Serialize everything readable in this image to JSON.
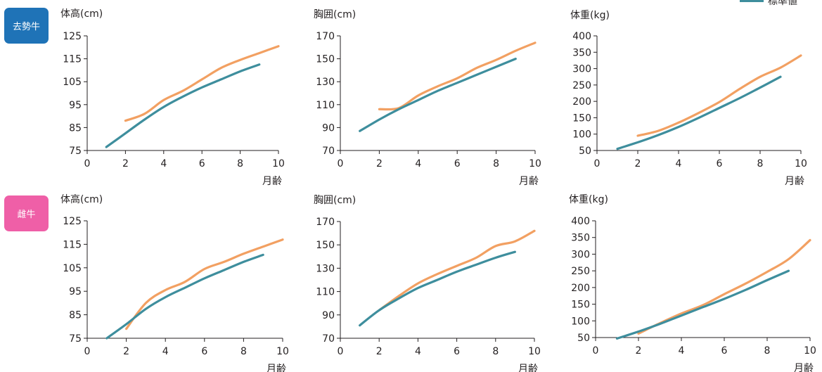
{
  "legend": {
    "label": "標準値",
    "color": "#3e8e9d"
  },
  "groups": [
    {
      "name": "去勢牛",
      "color": "#1f73b7"
    },
    {
      "name": "雌牛",
      "color": "#ef5fa7"
    }
  ],
  "colors": {
    "standard": "#3e8e9d",
    "measured": "#f2a062"
  },
  "chart_data": [
    {
      "type": "line",
      "group": "去勢牛",
      "title": "体高(cm)",
      "xlabel": "月齢",
      "xlim": [
        0,
        10
      ],
      "ylim": [
        75,
        125
      ],
      "xticks": [
        0,
        2,
        4,
        6,
        8,
        10
      ],
      "yticks": [
        75,
        85,
        95,
        105,
        115,
        125
      ],
      "series": [
        {
          "name": "標準値",
          "x": [
            1,
            2,
            3,
            4,
            5,
            6,
            7,
            8,
            9
          ],
          "y": [
            76.5,
            82.5,
            88.5,
            94,
            98.5,
            102.5,
            106,
            109.5,
            112.5
          ]
        },
        {
          "x": [
            2,
            3,
            4,
            5,
            6,
            7,
            8,
            9,
            10
          ],
          "y": [
            88,
            91,
            97,
            101,
            106,
            111,
            114.5,
            117.5,
            120.5
          ]
        }
      ]
    },
    {
      "type": "line",
      "group": "去勢牛",
      "title": "胸囲(cm)",
      "xlabel": "月齢",
      "xlim": [
        0,
        10
      ],
      "ylim": [
        70,
        170
      ],
      "xticks": [
        0,
        2,
        4,
        6,
        8,
        10
      ],
      "yticks": [
        70,
        90,
        110,
        130,
        150,
        170
      ],
      "series": [
        {
          "name": "標準値",
          "x": [
            1,
            2,
            3,
            4,
            5,
            6,
            7,
            8,
            9
          ],
          "y": [
            87,
            97,
            106,
            114,
            122,
            129,
            136,
            143,
            150
          ]
        },
        {
          "x": [
            2,
            3,
            4,
            5,
            6,
            7,
            8,
            9,
            10
          ],
          "y": [
            106,
            107,
            118,
            126,
            133,
            142,
            149,
            157,
            164
          ]
        }
      ]
    },
    {
      "type": "line",
      "group": "去勢牛",
      "title": "体重(kg)",
      "xlabel": "月齢",
      "xlim": [
        0,
        10
      ],
      "ylim": [
        50,
        400
      ],
      "xticks": [
        0,
        2,
        4,
        6,
        8,
        10
      ],
      "yticks": [
        50,
        100,
        150,
        200,
        250,
        300,
        350,
        400
      ],
      "series": [
        {
          "name": "標準値",
          "x": [
            1,
            2,
            3,
            4,
            5,
            6,
            7,
            8,
            9
          ],
          "y": [
            55,
            75,
            97,
            122,
            150,
            180,
            210,
            242,
            275
          ]
        },
        {
          "x": [
            2,
            3,
            4,
            5,
            6,
            7,
            8,
            9,
            10
          ],
          "y": [
            95,
            110,
            135,
            165,
            198,
            238,
            275,
            303,
            340
          ]
        }
      ]
    },
    {
      "type": "line",
      "group": "雌牛",
      "title": "体高(cm)",
      "xlabel": "月齢",
      "xlim": [
        0,
        10
      ],
      "ylim": [
        75,
        125
      ],
      "xticks": [
        0,
        2,
        4,
        6,
        8,
        10
      ],
      "yticks": [
        75,
        85,
        95,
        105,
        115,
        125
      ],
      "series": [
        {
          "name": "標準値",
          "x": [
            1,
            2,
            3,
            4,
            5,
            6,
            7,
            8,
            9
          ],
          "y": [
            75,
            81,
            87.5,
            92.5,
            96.5,
            100.5,
            104,
            107.5,
            110.5
          ]
        },
        {
          "x": [
            2,
            3,
            4,
            5,
            6,
            7,
            8,
            9,
            10
          ],
          "y": [
            79,
            90,
            95.5,
            99,
            104.5,
            107.5,
            111,
            114,
            117
          ]
        }
      ]
    },
    {
      "type": "line",
      "group": "雌牛",
      "title": "胸囲(cm)",
      "xlabel": "月齢",
      "xlim": [
        0,
        10
      ],
      "ylim": [
        70,
        170
      ],
      "xticks": [
        0,
        2,
        4,
        6,
        8,
        10
      ],
      "yticks": [
        70,
        90,
        110,
        130,
        150,
        170
      ],
      "series": [
        {
          "name": "標準値",
          "x": [
            1,
            2,
            3,
            4,
            5,
            6,
            7,
            8,
            9
          ],
          "y": [
            81,
            94,
            104,
            113,
            120,
            127,
            133,
            139,
            144
          ]
        },
        {
          "x": [
            2,
            3,
            4,
            5,
            6,
            7,
            8,
            9,
            10
          ],
          "y": [
            94,
            106,
            117,
            125,
            132,
            139,
            149,
            153,
            162
          ]
        }
      ]
    },
    {
      "type": "line",
      "group": "雌牛",
      "title": "体重(kg)",
      "xlabel": "月齢",
      "xlim": [
        0,
        10
      ],
      "ylim": [
        50,
        400
      ],
      "xticks": [
        0,
        2,
        4,
        6,
        8,
        10
      ],
      "yticks": [
        50,
        100,
        150,
        200,
        250,
        300,
        350,
        400
      ],
      "series": [
        {
          "name": "標準値",
          "x": [
            1,
            2,
            3,
            4,
            5,
            6,
            7,
            8,
            9
          ],
          "y": [
            47,
            68,
            91,
            116,
            141,
            166,
            193,
            222,
            250
          ]
        },
        {
          "x": [
            2,
            3,
            4,
            5,
            6,
            7,
            8,
            9,
            10
          ],
          "y": [
            62,
            93,
            122,
            147,
            180,
            212,
            247,
            285,
            342
          ]
        }
      ]
    }
  ]
}
